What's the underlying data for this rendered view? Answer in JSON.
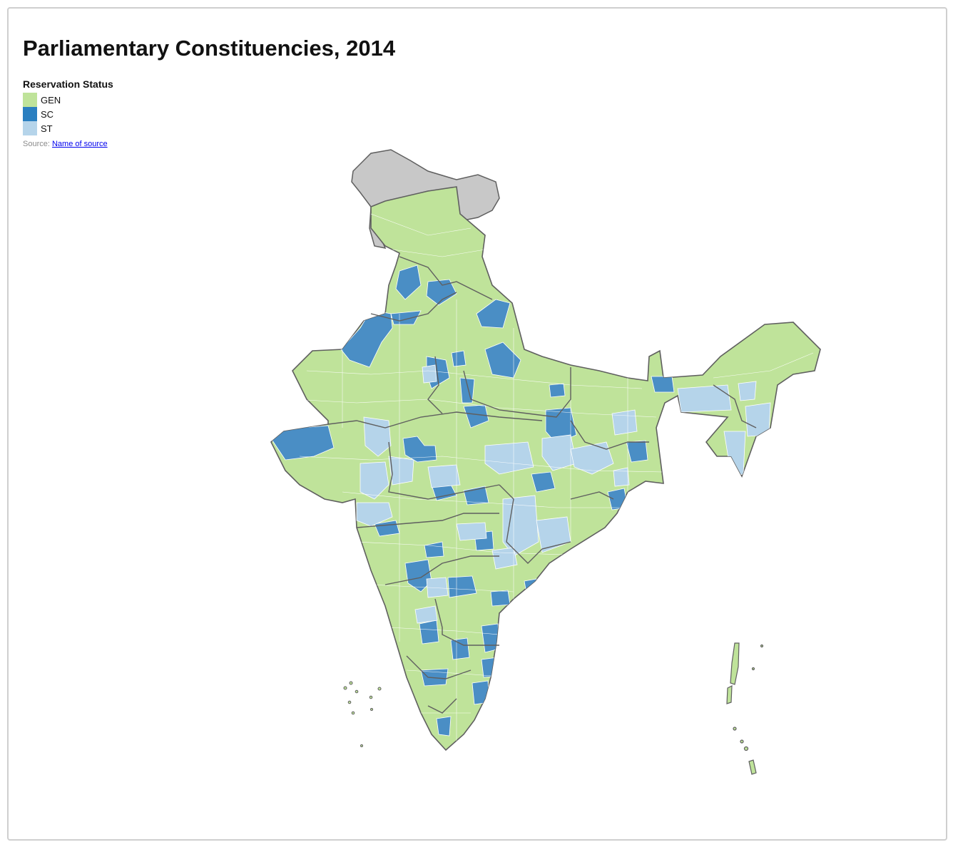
{
  "title": "Parliamentary Constituencies, 2014",
  "legend": {
    "title": "Reservation Status",
    "items": [
      {
        "label": "GEN",
        "color": "#bfe39a"
      },
      {
        "label": "SC",
        "color": "#2a7fc0"
      },
      {
        "label": "ST",
        "color": "#b5d4ea"
      }
    ]
  },
  "source": {
    "prefix": "Source:",
    "link_text": "Name of source"
  },
  "colors": {
    "gen": "#bfe39a",
    "sc": "#4a8ec5",
    "st": "#b5d4ea",
    "disputed": "#c8c8c8",
    "state_border": "#5f5f5f",
    "constituency_border": "#ffffff"
  }
}
